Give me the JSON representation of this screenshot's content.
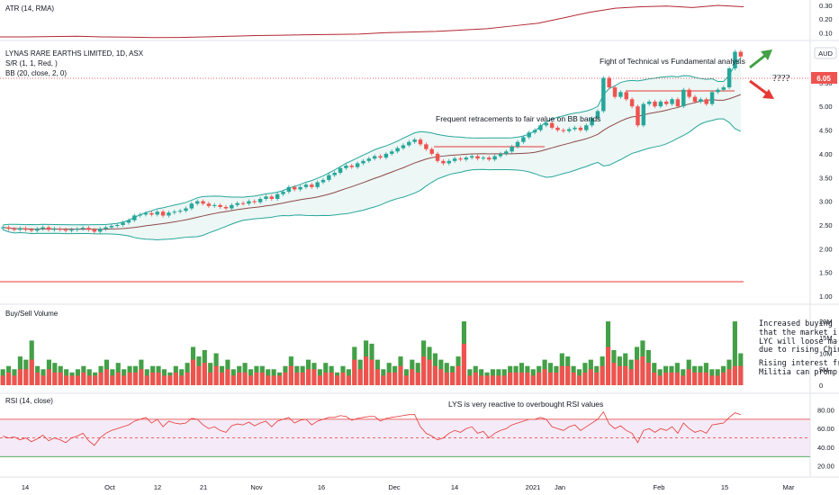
{
  "chart_data": [
    {
      "type": "line",
      "title": "ATR (14, RMA)",
      "ylim": [
        0.05,
        0.32
      ],
      "yticks": [
        "0.30",
        "0.20",
        "0.10"
      ],
      "ytick_values": [
        0.3,
        0.2,
        0.1
      ],
      "series": [
        {
          "values": [
            0.07,
            0.07,
            0.072,
            0.075,
            0.07,
            0.068,
            0.065,
            0.066,
            0.07,
            0.075,
            0.08,
            0.082,
            0.085,
            0.088,
            0.09,
            0.1,
            0.105,
            0.11,
            0.12,
            0.13,
            0.15,
            0.17,
            0.21,
            0.25,
            0.28,
            0.29,
            0.295,
            0.285,
            0.3,
            0.29
          ]
        }
      ],
      "color": "#b22833"
    },
    {
      "type": "candlestick",
      "title": "LYNAS RARE EARTHS LIMITED, 1D, ASX",
      "indicators": [
        "S/R (1, 1, Red, )",
        "BB (20, close, 2, 0)"
      ],
      "currency": "AUD",
      "last_price": "6.05",
      "ylim": [
        0.85,
        6.35
      ],
      "yticks": [
        "5.50",
        "5.00",
        "4.50",
        "4.00",
        "3.50",
        "3.00",
        "2.50",
        "2.00",
        "1.50",
        "1.00"
      ],
      "ytick_values": [
        5.5,
        5.0,
        4.5,
        4.0,
        3.5,
        3.0,
        2.5,
        2.0,
        1.5,
        1.0
      ],
      "xticks": [
        "14",
        "Oct",
        "12",
        "21",
        "Nov",
        "16",
        "Dec",
        "14",
        "2021",
        "Jan",
        "Feb",
        "15",
        "Mar"
      ],
      "close": [
        2.45,
        2.42,
        2.4,
        2.43,
        2.4,
        2.38,
        2.42,
        2.45,
        2.4,
        2.42,
        2.4,
        2.38,
        2.4,
        2.42,
        2.44,
        2.4,
        2.36,
        2.42,
        2.45,
        2.48,
        2.5,
        2.55,
        2.6,
        2.7,
        2.72,
        2.75,
        2.72,
        2.78,
        2.7,
        2.76,
        2.78,
        2.8,
        2.85,
        2.95,
        3.0,
        2.95,
        2.9,
        2.92,
        2.88,
        2.85,
        2.92,
        2.96,
        2.95,
        3.0,
        2.98,
        3.05,
        3.1,
        3.05,
        3.15,
        3.2,
        3.3,
        3.25,
        3.3,
        3.35,
        3.3,
        3.4,
        3.45,
        3.55,
        3.6,
        3.7,
        3.75,
        3.72,
        3.8,
        3.85,
        3.9,
        3.95,
        3.92,
        4.0,
        4.05,
        4.12,
        4.18,
        4.25,
        4.3,
        4.2,
        4.1,
        4.0,
        3.85,
        3.8,
        3.85,
        3.9,
        3.88,
        3.92,
        3.95,
        3.9,
        3.92,
        3.88,
        3.95,
        4.0,
        4.05,
        4.15,
        4.25,
        4.35,
        4.45,
        4.5,
        4.6,
        4.65,
        4.55,
        4.5,
        4.48,
        4.52,
        4.55,
        4.5,
        4.6,
        4.75,
        4.9,
        5.6,
        5.4,
        5.2,
        5.3,
        5.15,
        5.0,
        4.6,
        5.05,
        5.1,
        5.0,
        5.1,
        5.05,
        5.15,
        5.0,
        5.35,
        5.2,
        5.1,
        5.15,
        5.05,
        5.3,
        5.35,
        5.4,
        5.8,
        6.15,
        6.05
      ],
      "bb": {
        "upper_start": 2.6,
        "upper_end": 5.8,
        "middle_start": 2.4,
        "middle_end": 5.2,
        "lower_start": 2.25,
        "lower_end": 4.5
      },
      "annotations": [
        "Frequent retracements to fair value on BB bands",
        "Fight of Technical vs Fundamental analysis",
        "????"
      ]
    },
    {
      "type": "bar",
      "title": "Buy/Sell Volume",
      "yticks": [
        "20M",
        "15M",
        "10M",
        "5M",
        "0"
      ],
      "ytick_values": [
        20,
        15,
        10,
        5,
        0
      ],
      "unit": "M",
      "buy": [
        5,
        6,
        5,
        9,
        8,
        14,
        6,
        5,
        8,
        7,
        6,
        5,
        4,
        5,
        6,
        5,
        4,
        6,
        8,
        5,
        7,
        5,
        6,
        6,
        8,
        5,
        6,
        6,
        5,
        4,
        6,
        5,
        7,
        12,
        9,
        11,
        7,
        10,
        6,
        8,
        5,
        6,
        7,
        5,
        6,
        6,
        5,
        5,
        4,
        6,
        9,
        6,
        6,
        8,
        7,
        5,
        7,
        6,
        4,
        6,
        5,
        12,
        8,
        14,
        13,
        8,
        5,
        7,
        6,
        9,
        5,
        8,
        7,
        14,
        12,
        10,
        8,
        7,
        6,
        9,
        20,
        5,
        6,
        5,
        4,
        5,
        5,
        5,
        6,
        6,
        7,
        6,
        5,
        6,
        8,
        7,
        6,
        10,
        9,
        6,
        5,
        7,
        8,
        6,
        9,
        20,
        11,
        9,
        10,
        8,
        12,
        14,
        11,
        7,
        5,
        6,
        6,
        7,
        5,
        8,
        6,
        6,
        7,
        5,
        5,
        6,
        8,
        20,
        10
      ],
      "sell": [
        3,
        4,
        3,
        5,
        5,
        8,
        4,
        3,
        5,
        4,
        4,
        3,
        3,
        3,
        4,
        3,
        3,
        4,
        5,
        3,
        4,
        3,
        4,
        4,
        5,
        3,
        4,
        4,
        3,
        3,
        4,
        3,
        4,
        8,
        6,
        7,
        4,
        6,
        4,
        5,
        3,
        4,
        4,
        3,
        4,
        4,
        3,
        3,
        3,
        4,
        6,
        4,
        4,
        5,
        5,
        3,
        4,
        4,
        3,
        4,
        3,
        8,
        5,
        9,
        8,
        5,
        3,
        4,
        4,
        6,
        3,
        5,
        4,
        9,
        8,
        6,
        5,
        4,
        4,
        6,
        13,
        3,
        4,
        3,
        3,
        3,
        3,
        3,
        4,
        4,
        4,
        4,
        3,
        4,
        5,
        4,
        4,
        6,
        6,
        4,
        3,
        4,
        5,
        4,
        6,
        12,
        7,
        6,
        6,
        5,
        8,
        9,
        7,
        4,
        3,
        4,
        4,
        4,
        3,
        5,
        4,
        4,
        4,
        3,
        3,
        4,
        5,
        6,
        6
      ],
      "notes": [
        "Increased buying",
        "that the market i",
        "LYC will loose ma",
        "due to rising Chin",
        "Rising interest fr",
        "Militia can promp"
      ]
    },
    {
      "type": "line",
      "title": "RSI (14, close)",
      "ylim": [
        10,
        95
      ],
      "yticks": [
        "80.00",
        "60.00",
        "40.00",
        "20.00"
      ],
      "ytick_values": [
        80,
        60,
        40,
        20
      ],
      "band": [
        30,
        70
      ],
      "annotation": "LYS is very reactive to overbought RSI values",
      "values": [
        52,
        50,
        51,
        48,
        50,
        46,
        49,
        53,
        47,
        50,
        48,
        45,
        50,
        52,
        55,
        47,
        42,
        50,
        55,
        58,
        60,
        62,
        64,
        68,
        70,
        72,
        66,
        70,
        62,
        68,
        66,
        65,
        66,
        71,
        70,
        64,
        60,
        62,
        58,
        56,
        63,
        65,
        64,
        67,
        63,
        66,
        68,
        62,
        68,
        70,
        72,
        66,
        69,
        70,
        64,
        68,
        70,
        72,
        72,
        74,
        73,
        69,
        71,
        72,
        73,
        73,
        68,
        71,
        72,
        73,
        74,
        75,
        75,
        62,
        55,
        52,
        48,
        50,
        55,
        58,
        56,
        60,
        62,
        55,
        57,
        50,
        55,
        58,
        60,
        64,
        66,
        68,
        70,
        70,
        72,
        70,
        62,
        60,
        58,
        62,
        64,
        58,
        62,
        66,
        70,
        78,
        65,
        60,
        63,
        58,
        55,
        45,
        58,
        60,
        56,
        60,
        58,
        62,
        55,
        66,
        60,
        56,
        58,
        55,
        64,
        65,
        66,
        72,
        77,
        75
      ],
      "color": "#e53935"
    }
  ]
}
